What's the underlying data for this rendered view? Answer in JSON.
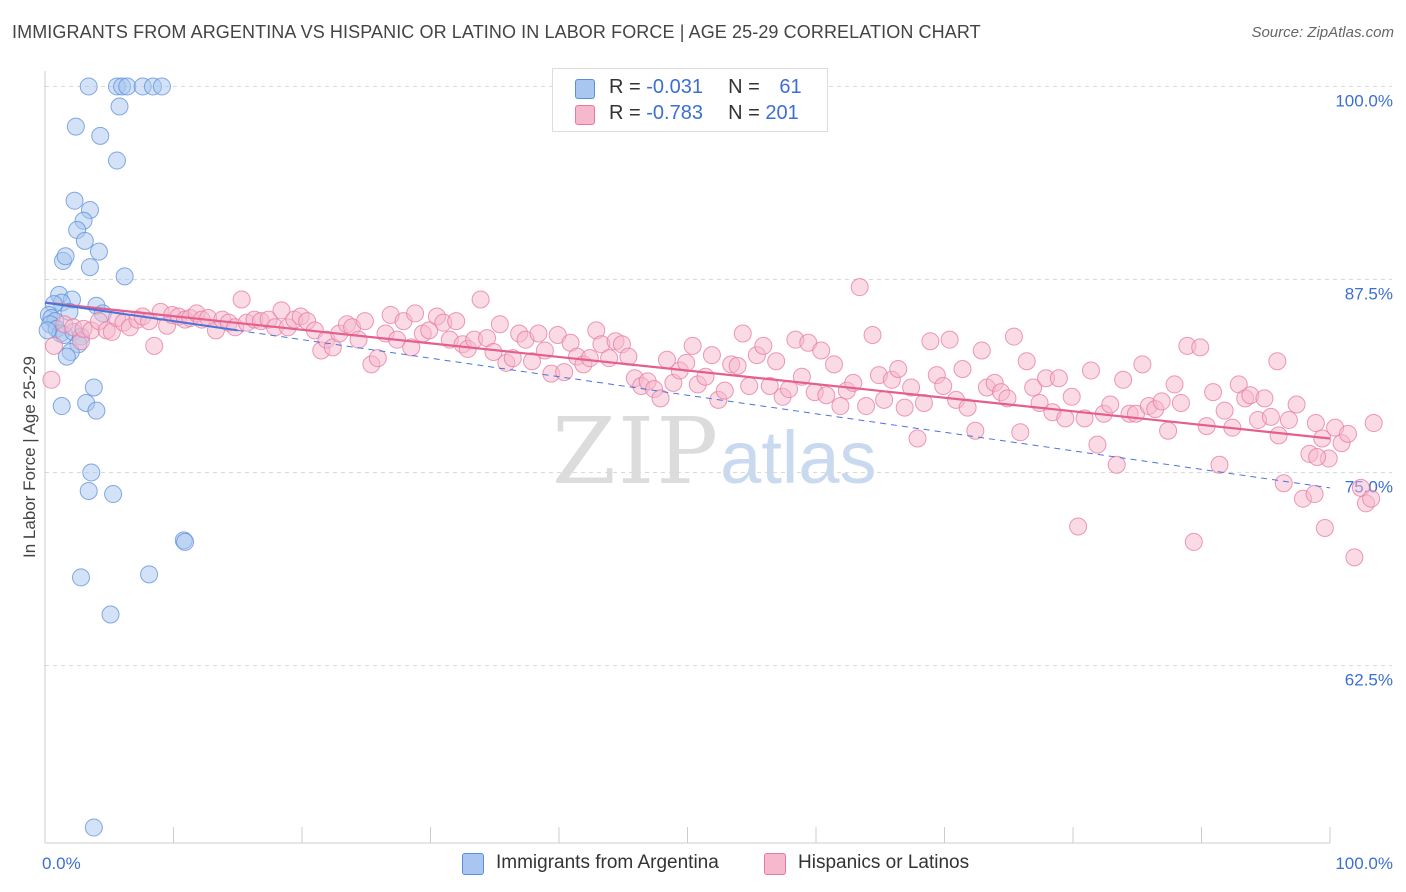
{
  "header": {
    "title": "IMMIGRANTS FROM ARGENTINA VS HISPANIC OR LATINO IN LABOR FORCE | AGE 25-29 CORRELATION CHART",
    "source": "Source: ZipAtlas.com"
  },
  "watermark": {
    "zip": "ZIP",
    "atlas": "atlas"
  },
  "legend": {
    "rows": [
      {
        "r_label": "R = ",
        "r_value": "-0.031",
        "n_label": "N = ",
        "n_value": "61"
      },
      {
        "r_label": "R = ",
        "r_value": "-0.783",
        "n_label": "N = ",
        "n_value": "201"
      }
    ]
  },
  "colors": {
    "blue_fill": "#a8c6f0",
    "blue_stroke": "#5b8fd9",
    "blue_line": "#4a74d8",
    "pink_fill": "#f6b8cc",
    "pink_stroke": "#e8789e",
    "pink_line": "#e45e8e",
    "axis_text": "#3b6fd4",
    "grid": "#d9d9d9"
  },
  "chart_data": {
    "type": "scatter",
    "title": "IMMIGRANTS FROM ARGENTINA VS HISPANIC OR LATINO IN LABOR FORCE | AGE 25-29 CORRELATION CHART",
    "xlabel": "",
    "ylabel": "In Labor Force | Age 25-29",
    "xlim": [
      0,
      100
    ],
    "ylim": [
      51,
      101
    ],
    "x_tick_labels": [
      "0.0%",
      "100.0%"
    ],
    "y_ticks": [
      62.5,
      75.0,
      87.5,
      100.0
    ],
    "y_tick_labels": [
      "62.5%",
      "75.0%",
      "87.5%",
      "100.0%"
    ],
    "grid": true,
    "legend_position": "top-center",
    "series": [
      {
        "name": "Immigrants from Argentina",
        "color": "blue",
        "R": -0.031,
        "N": 61,
        "trend": [
          [
            0.0,
            86.0
          ],
          [
            100.0,
            74.0
          ]
        ],
        "points": [
          [
            3.4,
            100.0
          ],
          [
            5.6,
            100.0
          ],
          [
            6.0,
            100.0
          ],
          [
            6.4,
            100.0
          ],
          [
            7.6,
            100.0
          ],
          [
            8.4,
            100.0
          ],
          [
            9.1,
            100.0
          ],
          [
            5.8,
            98.7
          ],
          [
            2.4,
            97.4
          ],
          [
            4.3,
            96.8
          ],
          [
            5.6,
            95.2
          ],
          [
            2.3,
            92.6
          ],
          [
            3.5,
            92.0
          ],
          [
            3.0,
            91.3
          ],
          [
            2.5,
            90.7
          ],
          [
            3.1,
            90.0
          ],
          [
            1.4,
            88.7
          ],
          [
            1.6,
            89.0
          ],
          [
            4.2,
            89.3
          ],
          [
            3.5,
            88.3
          ],
          [
            6.2,
            87.7
          ],
          [
            1.1,
            86.5
          ],
          [
            2.1,
            86.2
          ],
          [
            1.3,
            86.0
          ],
          [
            0.7,
            85.9
          ],
          [
            1.9,
            85.4
          ],
          [
            0.3,
            85.2
          ],
          [
            0.5,
            85.0
          ],
          [
            0.8,
            84.8
          ],
          [
            4.0,
            85.8
          ],
          [
            4.5,
            85.3
          ],
          [
            0.4,
            84.6
          ],
          [
            0.9,
            84.3
          ],
          [
            1.2,
            84.0
          ],
          [
            1.5,
            83.9
          ],
          [
            2.2,
            84.1
          ],
          [
            2.8,
            83.8
          ],
          [
            0.2,
            84.2
          ],
          [
            2.6,
            83.3
          ],
          [
            2.0,
            82.8
          ],
          [
            1.7,
            82.5
          ],
          [
            3.8,
            80.5
          ],
          [
            3.2,
            79.5
          ],
          [
            1.3,
            79.3
          ],
          [
            4.0,
            79.0
          ],
          [
            3.6,
            75.0
          ],
          [
            3.4,
            73.8
          ],
          [
            5.3,
            73.6
          ],
          [
            10.8,
            70.6
          ],
          [
            10.9,
            70.5
          ],
          [
            2.8,
            68.2
          ],
          [
            8.1,
            68.4
          ],
          [
            5.1,
            65.8
          ],
          [
            3.8,
            52.0
          ]
        ]
      },
      {
        "name": "Hispanics or Latinos",
        "color": "pink",
        "R": -0.783,
        "N": 201,
        "trend": [
          [
            0.0,
            86.0
          ],
          [
            100.0,
            77.2
          ]
        ],
        "points": [
          [
            0.5,
            81.0
          ],
          [
            0.7,
            83.2
          ],
          [
            1.5,
            84.6
          ],
          [
            2.2,
            84.4
          ],
          [
            2.8,
            83.5
          ],
          [
            3.0,
            84.3
          ],
          [
            3.6,
            84.2
          ],
          [
            4.2,
            84.8
          ],
          [
            4.8,
            84.2
          ],
          [
            5.2,
            84.1
          ],
          [
            5.6,
            85.0
          ],
          [
            6.1,
            84.7
          ],
          [
            6.6,
            84.4
          ],
          [
            7.2,
            84.9
          ],
          [
            7.6,
            85.1
          ],
          [
            8.1,
            84.8
          ],
          [
            8.5,
            83.2
          ],
          [
            9.0,
            85.4
          ],
          [
            9.5,
            84.5
          ],
          [
            9.9,
            85.2
          ],
          [
            10.4,
            85.1
          ],
          [
            10.9,
            84.9
          ],
          [
            11.3,
            85.0
          ],
          [
            11.8,
            85.3
          ],
          [
            12.2,
            84.9
          ],
          [
            12.7,
            85.0
          ],
          [
            13.3,
            84.2
          ],
          [
            13.8,
            84.9
          ],
          [
            14.3,
            84.7
          ],
          [
            14.8,
            84.4
          ],
          [
            15.3,
            86.2
          ],
          [
            15.7,
            84.7
          ],
          [
            16.3,
            84.9
          ],
          [
            16.8,
            84.8
          ],
          [
            17.4,
            84.9
          ],
          [
            17.9,
            84.4
          ],
          [
            18.4,
            85.5
          ],
          [
            18.9,
            84.4
          ],
          [
            19.4,
            84.9
          ],
          [
            19.9,
            85.1
          ],
          [
            20.4,
            84.8
          ],
          [
            21.0,
            84.2
          ],
          [
            21.5,
            82.9
          ],
          [
            21.9,
            83.6
          ],
          [
            22.4,
            83.1
          ],
          [
            22.9,
            84.0
          ],
          [
            23.5,
            84.6
          ],
          [
            23.9,
            84.4
          ],
          [
            24.4,
            83.6
          ],
          [
            24.9,
            84.8
          ],
          [
            25.4,
            82.0
          ],
          [
            25.9,
            82.4
          ],
          [
            26.5,
            84.0
          ],
          [
            26.9,
            85.2
          ],
          [
            27.4,
            83.6
          ],
          [
            27.9,
            84.8
          ],
          [
            28.5,
            83.1
          ],
          [
            28.8,
            85.3
          ],
          [
            29.4,
            84.0
          ],
          [
            29.9,
            84.2
          ],
          [
            30.5,
            85.1
          ],
          [
            31.0,
            84.7
          ],
          [
            31.5,
            83.6
          ],
          [
            32.0,
            84.8
          ],
          [
            32.5,
            83.3
          ],
          [
            32.9,
            83.0
          ],
          [
            33.4,
            83.6
          ],
          [
            33.9,
            86.2
          ],
          [
            34.4,
            83.7
          ],
          [
            34.9,
            82.8
          ],
          [
            35.4,
            84.6
          ],
          [
            35.9,
            82.1
          ],
          [
            36.4,
            82.4
          ],
          [
            36.9,
            84.0
          ],
          [
            37.4,
            83.6
          ],
          [
            37.9,
            82.2
          ],
          [
            38.4,
            84.0
          ],
          [
            38.9,
            82.9
          ],
          [
            39.4,
            81.4
          ],
          [
            39.9,
            83.9
          ],
          [
            40.4,
            81.5
          ],
          [
            40.9,
            83.4
          ],
          [
            41.4,
            82.5
          ],
          [
            41.9,
            82.0
          ],
          [
            42.4,
            82.4
          ],
          [
            42.9,
            84.2
          ],
          [
            43.3,
            83.3
          ],
          [
            43.9,
            82.4
          ],
          [
            44.4,
            83.5
          ],
          [
            44.9,
            83.3
          ],
          [
            45.4,
            82.5
          ],
          [
            45.9,
            81.1
          ],
          [
            46.4,
            80.6
          ],
          [
            46.9,
            80.9
          ],
          [
            47.4,
            80.4
          ],
          [
            47.9,
            79.8
          ],
          [
            48.4,
            82.3
          ],
          [
            48.9,
            80.8
          ],
          [
            49.4,
            81.6
          ],
          [
            49.9,
            82.1
          ],
          [
            50.4,
            83.2
          ],
          [
            50.8,
            80.7
          ],
          [
            51.4,
            81.2
          ],
          [
            51.9,
            82.6
          ],
          [
            52.4,
            79.7
          ],
          [
            52.9,
            80.3
          ],
          [
            53.4,
            82.0
          ],
          [
            53.9,
            81.9
          ],
          [
            54.3,
            84.0
          ],
          [
            54.8,
            80.6
          ],
          [
            55.4,
            82.6
          ],
          [
            55.9,
            83.2
          ],
          [
            56.4,
            80.6
          ],
          [
            56.9,
            82.2
          ],
          [
            57.4,
            79.9
          ],
          [
            57.9,
            80.4
          ],
          [
            58.4,
            83.6
          ],
          [
            58.9,
            81.2
          ],
          [
            59.4,
            83.4
          ],
          [
            59.9,
            80.2
          ],
          [
            60.4,
            82.9
          ],
          [
            60.8,
            80.0
          ],
          [
            61.4,
            82.0
          ],
          [
            61.9,
            79.3
          ],
          [
            62.4,
            80.3
          ],
          [
            62.9,
            80.8
          ],
          [
            63.4,
            87.0
          ],
          [
            63.9,
            79.3
          ],
          [
            64.4,
            83.9
          ],
          [
            64.9,
            81.3
          ],
          [
            65.3,
            79.7
          ],
          [
            65.9,
            81.0
          ],
          [
            66.4,
            81.7
          ],
          [
            66.9,
            79.2
          ],
          [
            67.4,
            80.5
          ],
          [
            67.9,
            77.2
          ],
          [
            68.4,
            79.5
          ],
          [
            68.9,
            83.5
          ],
          [
            69.4,
            81.3
          ],
          [
            69.9,
            80.6
          ],
          [
            70.4,
            83.6
          ],
          [
            70.9,
            79.7
          ],
          [
            71.4,
            81.7
          ],
          [
            71.8,
            79.2
          ],
          [
            72.4,
            77.7
          ],
          [
            72.9,
            82.9
          ],
          [
            73.3,
            80.5
          ],
          [
            73.9,
            80.8
          ],
          [
            74.4,
            80.2
          ],
          [
            74.9,
            79.8
          ],
          [
            75.4,
            83.8
          ],
          [
            75.9,
            77.6
          ],
          [
            76.4,
            82.2
          ],
          [
            76.9,
            80.5
          ],
          [
            77.4,
            79.5
          ],
          [
            77.9,
            81.1
          ],
          [
            78.4,
            78.9
          ],
          [
            78.9,
            81.1
          ],
          [
            79.4,
            78.5
          ],
          [
            79.9,
            79.9
          ],
          [
            80.4,
            71.5
          ],
          [
            80.9,
            78.5
          ],
          [
            81.4,
            81.6
          ],
          [
            81.9,
            76.8
          ],
          [
            82.4,
            78.8
          ],
          [
            82.9,
            79.4
          ],
          [
            83.4,
            75.5
          ],
          [
            83.9,
            81.0
          ],
          [
            84.4,
            78.8
          ],
          [
            84.9,
            78.8
          ],
          [
            85.4,
            82.0
          ],
          [
            85.9,
            79.3
          ],
          [
            86.4,
            79.1
          ],
          [
            86.9,
            79.6
          ],
          [
            87.4,
            77.7
          ],
          [
            87.9,
            80.7
          ],
          [
            88.4,
            79.5
          ],
          [
            88.9,
            83.2
          ],
          [
            89.4,
            70.5
          ],
          [
            89.9,
            83.1
          ],
          [
            90.4,
            78.0
          ],
          [
            90.9,
            80.2
          ],
          [
            91.4,
            75.5
          ],
          [
            91.8,
            79.0
          ],
          [
            92.4,
            77.9
          ],
          [
            92.9,
            80.7
          ],
          [
            93.4,
            79.8
          ],
          [
            93.8,
            80.0
          ],
          [
            94.4,
            78.4
          ],
          [
            94.9,
            79.8
          ],
          [
            95.4,
            78.6
          ],
          [
            95.9,
            82.2
          ],
          [
            96.4,
            74.3
          ],
          [
            96.8,
            78.4
          ],
          [
            97.4,
            79.4
          ],
          [
            97.9,
            73.3
          ],
          [
            98.4,
            76.2
          ],
          [
            98.9,
            78.2
          ],
          [
            99.4,
            77.2
          ],
          [
            99.9,
            75.9
          ],
          [
            100.4,
            77.9
          ],
          [
            100.9,
            76.9
          ],
          [
            101.4,
            77.5
          ],
          [
            101.9,
            69.5
          ],
          [
            102.4,
            74.0
          ],
          [
            102.8,
            73.0
          ],
          [
            103.2,
            73.3
          ],
          [
            103.4,
            78.2
          ],
          [
            99.6,
            71.4
          ],
          [
            98.8,
            73.6
          ],
          [
            99.0,
            76.0
          ],
          [
            96.0,
            77.4
          ]
        ]
      }
    ]
  },
  "bottom_legend": [
    {
      "label": "Immigrants from Argentina"
    },
    {
      "label": "Hispanics or Latinos"
    }
  ]
}
